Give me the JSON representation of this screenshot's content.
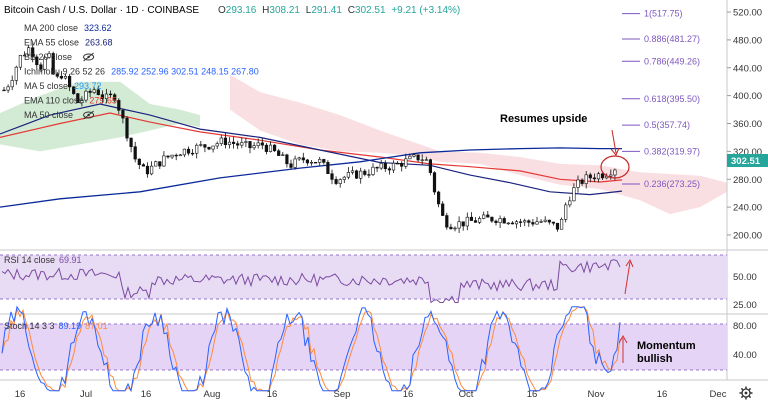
{
  "chart_data": {
    "type": "line",
    "instrument": {
      "title": "Bitcoin Cash / U.S. Dollar · 1D · COINBASE",
      "ohlc": {
        "O": "293.16",
        "H": "308.21",
        "L": "291.41",
        "C": "302.51",
        "change": "+9.21 (+3.14%)"
      },
      "last_price": "302.51"
    },
    "indicators": [
      {
        "name": "MA 200 close",
        "values": "323.62",
        "color": "#0b2a9a"
      },
      {
        "name": "EMA 55 close",
        "values": "263.68",
        "color": "#1a237e"
      },
      {
        "name": "BB 20 close",
        "values": "",
        "color": "#777777"
      },
      {
        "name": "Ichimoku 9 26 52 26",
        "values": "285.92 252.96 302.51 248.15 267.80",
        "color": "#2962ff"
      },
      {
        "name": "MA 5 close",
        "values": "293.72",
        "color": "#2196f3"
      },
      {
        "name": "EMA 110 close",
        "values": "279.65",
        "color": "#e53935"
      },
      {
        "name": "MA 50 close",
        "values": "",
        "color": "#777777"
      }
    ],
    "main_axis": {
      "ticks": [
        "520.00",
        "480.00",
        "440.00",
        "400.00",
        "360.00",
        "320.00",
        "280.00",
        "240.00",
        "200.00"
      ],
      "range": [
        187,
        528
      ]
    },
    "fib_levels": [
      {
        "label": "1(517.75)",
        "value": 517.75
      },
      {
        "label": "0.886(481.27)",
        "value": 481.27
      },
      {
        "label": "0.786(449.26)",
        "value": 449.26
      },
      {
        "label": "0.618(395.50)",
        "value": 395.5
      },
      {
        "label": "0.5(357.74)",
        "value": 357.74
      },
      {
        "label": "0.382(319.97)",
        "value": 319.97
      },
      {
        "label": "0.236(273.25)",
        "value": 273.25
      }
    ],
    "annotations": {
      "upside": "Resumes upside",
      "momentum_line1": "Momentum",
      "momentum_line2": "bullish"
    },
    "rsi": {
      "label": "RSI 14 close",
      "value": "69.91",
      "ticks": [
        "50.00",
        "25.00"
      ]
    },
    "stoch": {
      "label": "Stoch 14 3 3",
      "k": "89.19",
      "d": "87.01",
      "ticks": [
        "80.00",
        "40.00"
      ]
    },
    "x_axis": {
      "ticks": [
        "16",
        "Jul",
        "16",
        "Aug",
        "16",
        "Sep",
        "16",
        "Oct",
        "16",
        "Nov",
        "16",
        "Dec"
      ]
    },
    "colors": {
      "up": "#26a69a",
      "down": "#ef5350",
      "candle": "#111111",
      "cloud_bull": "#c8e6c9",
      "cloud_bear": "#f8d7da",
      "rsi_band": "#e8dcf5",
      "stoch_band": "#e6d4f6",
      "ema110": "#e53935",
      "ema55": "#1a237e",
      "ma200": "#0b2a9a",
      "fib": "#7e57c2"
    },
    "settings_icon": "gear-icon"
  }
}
